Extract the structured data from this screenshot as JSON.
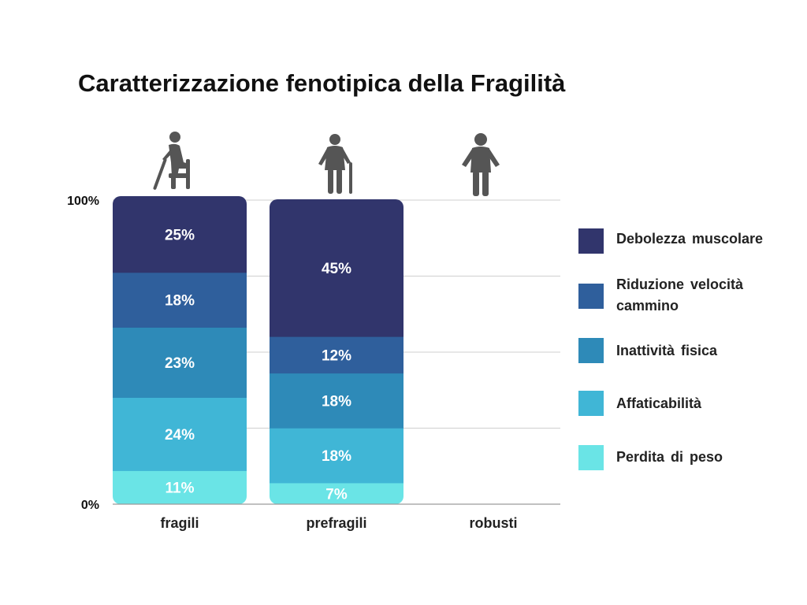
{
  "title": "Caratterizzazione fenotipica della Fragilità",
  "chart_data": {
    "type": "bar",
    "stacked": true,
    "title": "Caratterizzazione fenotipica della Fragilità",
    "categories": [
      "fragili",
      "prefragili",
      "robusti"
    ],
    "y_ticks": [
      "0%",
      "100%"
    ],
    "ylim": [
      0,
      100
    ],
    "grid": true,
    "legend_position": "right",
    "series": [
      {
        "name": "Perdita di peso",
        "color": "#6ae4e6",
        "values": [
          11,
          7,
          null
        ],
        "labels": [
          "11%",
          "7%",
          ""
        ]
      },
      {
        "name": "Affaticabilità",
        "color": "#40b6d6",
        "values": [
          24,
          18,
          null
        ],
        "labels": [
          "24%",
          "18%",
          ""
        ]
      },
      {
        "name": "Inattività fisica",
        "color": "#2e8ab8",
        "values": [
          23,
          18,
          null
        ],
        "labels": [
          "23%",
          "18%",
          ""
        ]
      },
      {
        "name": "Riduzione  velocità cammino",
        "color": "#2f5f9c",
        "values": [
          18,
          12,
          null
        ],
        "labels": [
          "18%",
          "12%",
          ""
        ]
      },
      {
        "name": "Debolezza muscolare",
        "color": "#31356c",
        "values": [
          25,
          45,
          null
        ],
        "labels": [
          "25%",
          "45%",
          ""
        ]
      }
    ],
    "category_icons": [
      "seated-elderly-person-with-cane-icon",
      "elderly-person-with-cane-icon",
      "standing-person-icon"
    ]
  },
  "legend": [
    {
      "label": "Debolezza muscolare",
      "color": "#31356c"
    },
    {
      "label": "Riduzione  velocità cammino",
      "color": "#2f5f9c"
    },
    {
      "label": "Inattività fisica",
      "color": "#2e8ab8"
    },
    {
      "label": "Affaticabilità",
      "color": "#40b6d6"
    },
    {
      "label": "Perdita di peso",
      "color": "#6ae4e6"
    }
  ]
}
